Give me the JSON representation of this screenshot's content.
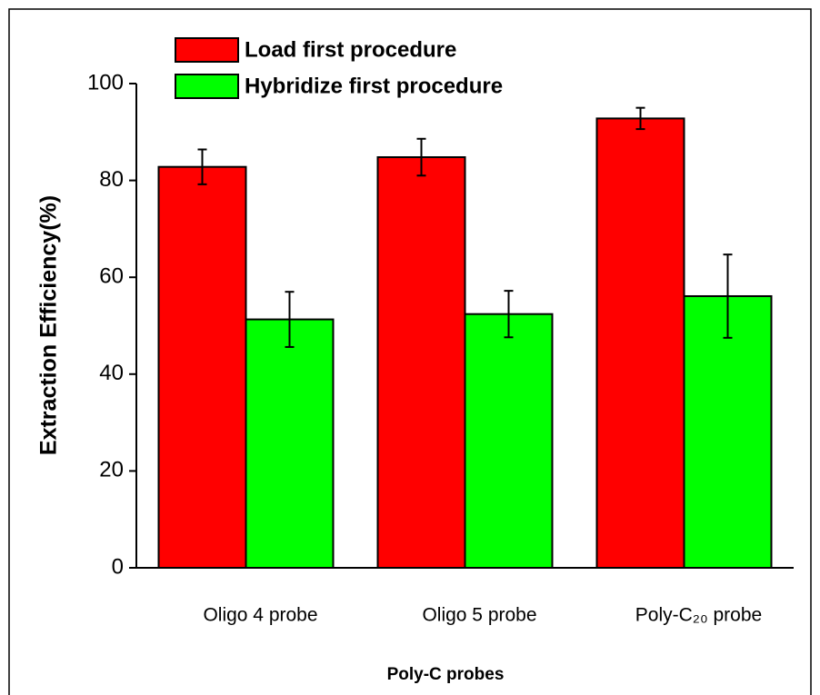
{
  "chart_data": {
    "type": "bar",
    "categories": [
      "Oligo 4 probe",
      "Oligo 5 probe",
      "Poly-C₂₀ probe"
    ],
    "series": [
      {
        "name": "Load first procedure",
        "color": "#ff0000",
        "values": [
          82.8,
          84.8,
          92.8
        ],
        "errors": [
          3.6,
          3.8,
          2.2
        ]
      },
      {
        "name": "Hybridize first procedure",
        "color": "#00ff00",
        "values": [
          51.3,
          52.4,
          56.1
        ],
        "errors": [
          5.7,
          4.8,
          8.6
        ]
      }
    ],
    "x_label": "Poly-C probes",
    "y_label": "Extraction Efficiency(%)",
    "ylim": [
      0,
      100
    ],
    "yticks": [
      0,
      20,
      40,
      60,
      80,
      100
    ],
    "legend": "top-left"
  }
}
